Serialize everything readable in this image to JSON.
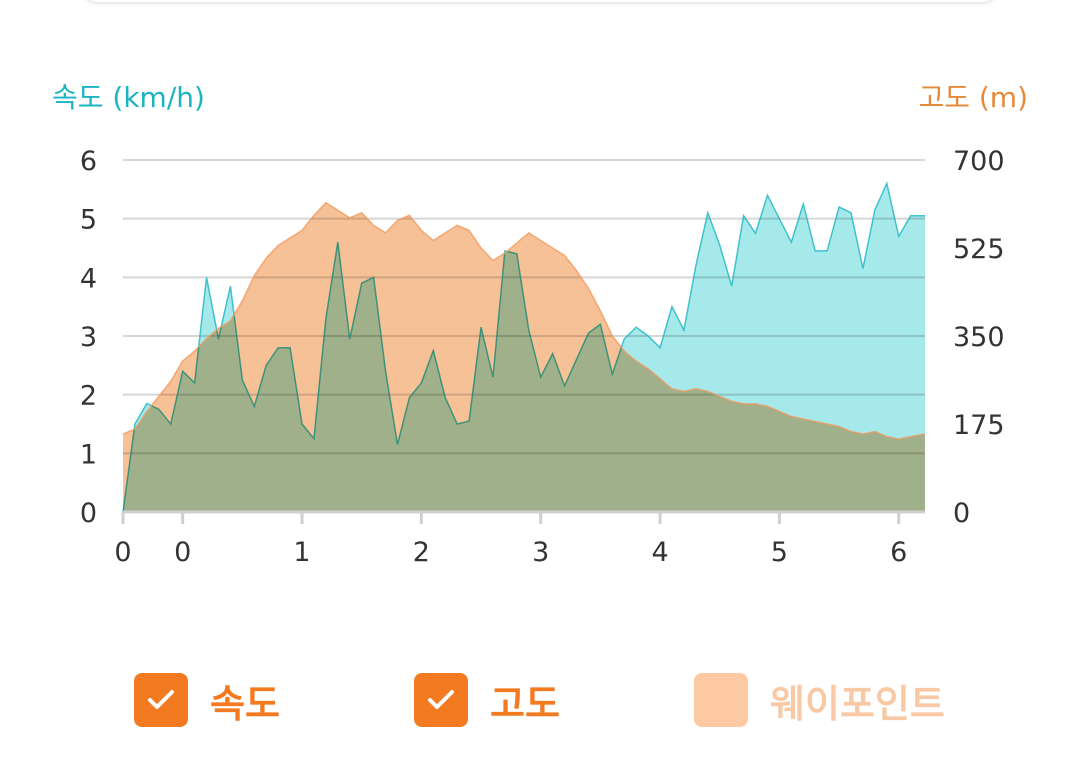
{
  "axis_titles": {
    "left": "속도 (km/h)",
    "right": "고도 (m)"
  },
  "legend": [
    {
      "label": "속도",
      "checked": true,
      "color": "#f47a21",
      "label_color": "#f47a21"
    },
    {
      "label": "고도",
      "checked": true,
      "color": "#f47a21",
      "label_color": "#f47a21"
    },
    {
      "label": "웨이포인트",
      "checked": false,
      "color": "#fdc9a3",
      "label_color": "#f9c9a6"
    }
  ],
  "chart_data": {
    "type": "area",
    "x_ticks": [
      "0",
      "0",
      "1",
      "2",
      "3",
      "4",
      "5",
      "6"
    ],
    "x_tick_positions": [
      0,
      0.5,
      1.5,
      2.5,
      3.5,
      4.5,
      5.5,
      6.5
    ],
    "x_range": [
      0,
      6.72
    ],
    "grid": true,
    "left_axis": {
      "title": "속도 (km/h)",
      "range": [
        0,
        6
      ],
      "ticks": [
        "0",
        "1",
        "2",
        "3",
        "4",
        "5",
        "6"
      ]
    },
    "right_axis": {
      "title": "고도 (m)",
      "range": [
        0,
        700
      ],
      "ticks": [
        "0",
        "175",
        "350",
        "525",
        "700"
      ]
    },
    "series": [
      {
        "name": "속도",
        "axis": "left",
        "color": "#1bb5c2",
        "fill": "#8de3e6",
        "x": [
          0,
          0.1,
          0.2,
          0.3,
          0.4,
          0.5,
          0.6,
          0.7,
          0.8,
          0.9,
          1.0,
          1.1,
          1.2,
          1.3,
          1.4,
          1.5,
          1.6,
          1.7,
          1.8,
          1.9,
          2.0,
          2.1,
          2.2,
          2.3,
          2.4,
          2.5,
          2.6,
          2.7,
          2.8,
          2.9,
          3.0,
          3.1,
          3.2,
          3.3,
          3.4,
          3.5,
          3.6,
          3.7,
          3.8,
          3.9,
          4.0,
          4.1,
          4.2,
          4.3,
          4.4,
          4.5,
          4.6,
          4.7,
          4.8,
          4.9,
          5.0,
          5.1,
          5.2,
          5.3,
          5.4,
          5.5,
          5.6,
          5.7,
          5.8,
          5.9,
          6.0,
          6.1,
          6.2,
          6.3,
          6.4,
          6.5,
          6.6,
          6.72
        ],
        "values": [
          0,
          1.5,
          1.85,
          1.75,
          1.5,
          2.4,
          2.2,
          4.0,
          2.95,
          3.85,
          2.25,
          1.8,
          2.5,
          2.8,
          2.8,
          1.5,
          1.25,
          3.3,
          4.6,
          2.95,
          3.9,
          4.0,
          2.4,
          1.15,
          1.95,
          2.2,
          2.75,
          1.95,
          1.5,
          1.55,
          3.15,
          2.3,
          4.45,
          4.4,
          3.1,
          2.3,
          2.7,
          2.15,
          2.6,
          3.05,
          3.2,
          2.35,
          2.95,
          3.15,
          3.0,
          2.8,
          3.5,
          3.1,
          4.2,
          5.1,
          4.55,
          3.85,
          5.05,
          4.75,
          5.4,
          5.0,
          4.6,
          5.25,
          4.45,
          4.45,
          5.2,
          5.1,
          4.15,
          5.15,
          5.6,
          4.7,
          5.05,
          5.05
        ]
      },
      {
        "name": "고도",
        "axis": "right",
        "color": "#f39a5e",
        "fill": "#f4b07a",
        "x": [
          0,
          0.1,
          0.2,
          0.3,
          0.4,
          0.5,
          0.6,
          0.7,
          0.8,
          0.9,
          1.0,
          1.1,
          1.2,
          1.3,
          1.4,
          1.5,
          1.6,
          1.7,
          1.8,
          1.9,
          2.0,
          2.1,
          2.2,
          2.3,
          2.4,
          2.5,
          2.6,
          2.7,
          2.8,
          2.9,
          3.0,
          3.1,
          3.2,
          3.3,
          3.4,
          3.5,
          3.6,
          3.7,
          3.8,
          3.9,
          4.0,
          4.1,
          4.2,
          4.3,
          4.4,
          4.5,
          4.6,
          4.7,
          4.8,
          4.9,
          5.0,
          5.1,
          5.2,
          5.3,
          5.4,
          5.5,
          5.6,
          5.7,
          5.8,
          5.9,
          6.0,
          6.1,
          6.2,
          6.3,
          6.4,
          6.5,
          6.6,
          6.72
        ],
        "values": [
          155,
          165,
          200,
          230,
          260,
          300,
          320,
          345,
          365,
          380,
          420,
          470,
          505,
          530,
          545,
          560,
          590,
          615,
          600,
          585,
          595,
          570,
          555,
          580,
          590,
          560,
          540,
          555,
          570,
          560,
          525,
          500,
          515,
          535,
          555,
          540,
          525,
          510,
          480,
          445,
          400,
          350,
          320,
          300,
          285,
          265,
          245,
          240,
          245,
          240,
          230,
          220,
          215,
          215,
          210,
          200,
          190,
          185,
          180,
          175,
          170,
          160,
          155,
          160,
          150,
          145,
          150,
          155
        ]
      }
    ]
  }
}
